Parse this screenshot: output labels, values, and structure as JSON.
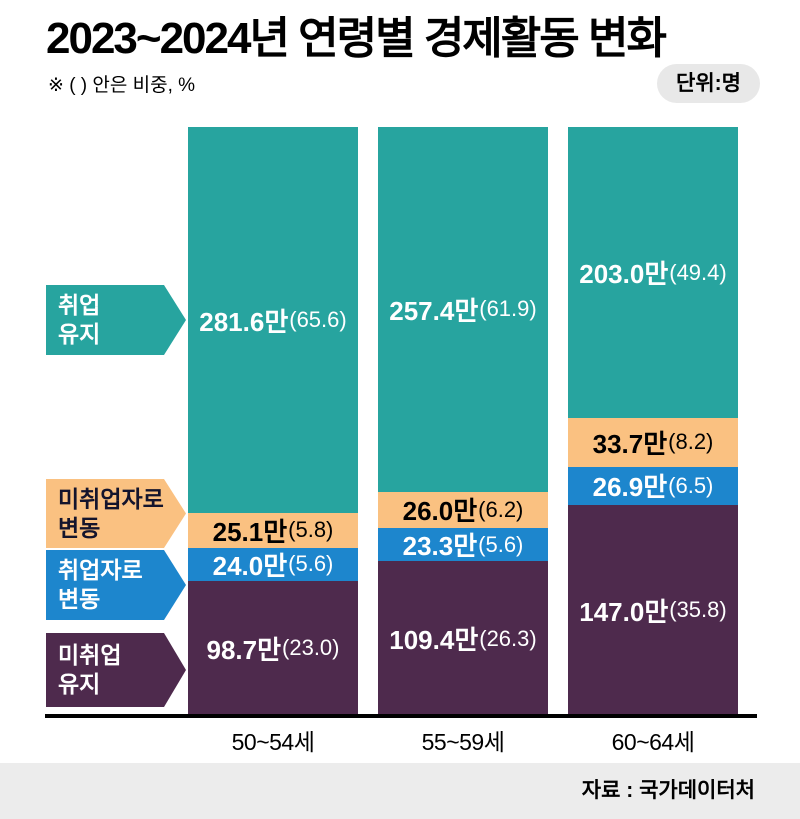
{
  "header": {
    "title": "2023~2024년 연령별 경제활동 변화",
    "note": "※ ( ) 안은 비중, %",
    "unit_badge": "단위:명"
  },
  "colors": {
    "teal": "#27a49f",
    "orange": "#fac181",
    "blue": "#1d86cd",
    "purple": "#4e2a4d",
    "badge_bg": "#e8e8e8",
    "source_strip_bg": "#ececec",
    "axis": "#000000",
    "background": "#ffffff"
  },
  "legend": [
    {
      "name": "employment-maintained",
      "lines": [
        "취업",
        "유지"
      ],
      "color": "#27a49f",
      "text_color": "#ffffff"
    },
    {
      "name": "changed-to-unemployed",
      "lines": [
        "미취업자로",
        "변동"
      ],
      "color": "#fac181",
      "text_color": "#14142c"
    },
    {
      "name": "changed-to-employed",
      "lines": [
        "취업자로",
        "변동"
      ],
      "color": "#1d86cd",
      "text_color": "#ffffff"
    },
    {
      "name": "unemployment-maintained",
      "lines": [
        "미취업",
        "유지"
      ],
      "color": "#4e2a4d",
      "text_color": "#ffffff"
    }
  ],
  "chart_data": {
    "type": "bar",
    "stacked": true,
    "percent_stacked": true,
    "title": "2023~2024년 연령별 경제활동 변화",
    "note": "※ ( ) 안은 비중, %",
    "unit": "명",
    "value_suffix": "만",
    "categories": [
      "50~54세",
      "55~59세",
      "60~64세"
    ],
    "series": [
      {
        "name": "취업 유지",
        "color": "#27a49f",
        "label_color": "#ffffff",
        "values": [
          281.6,
          257.4,
          203.0
        ],
        "shares": [
          65.6,
          61.9,
          49.4
        ]
      },
      {
        "name": "미취업자로 변동",
        "color": "#fac181",
        "label_color": "#000000",
        "values": [
          25.1,
          26.0,
          33.7
        ],
        "shares": [
          5.8,
          6.2,
          8.2
        ]
      },
      {
        "name": "취업자로 변동",
        "color": "#1d86cd",
        "label_color": "#ffffff",
        "values": [
          24.0,
          23.3,
          26.9
        ],
        "shares": [
          5.6,
          5.6,
          6.5
        ]
      },
      {
        "name": "미취업 유지",
        "color": "#4e2a4d",
        "label_color": "#ffffff",
        "values": [
          98.7,
          109.4,
          147.0
        ],
        "shares": [
          23.0,
          26.3,
          35.8
        ]
      }
    ],
    "legend_position": "left",
    "grid": false,
    "source": "자료 : 국가데이터처"
  },
  "footer": {
    "source": "자료 : 국가데이터처"
  }
}
